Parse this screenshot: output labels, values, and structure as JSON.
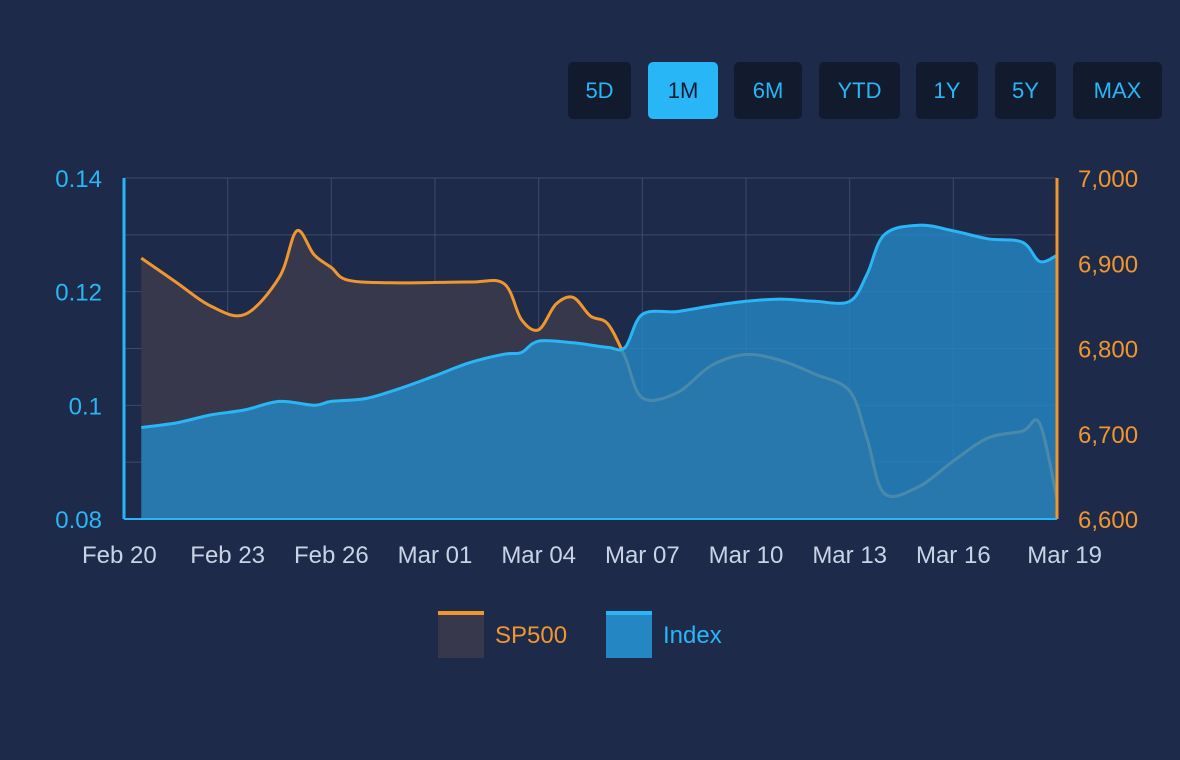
{
  "range_selector": {
    "buttons": [
      "5D",
      "1M",
      "6M",
      "YTD",
      "1Y",
      "5Y",
      "MAX"
    ],
    "active": "1M"
  },
  "colors": {
    "background": "#1e2a4a",
    "sp500": "#f0962e",
    "index": "#29b6f6",
    "sp500_fill": "#38384c",
    "index_fill": "#2586c4",
    "grid": "#3d4a68",
    "date_label": "#c9d3e6"
  },
  "chart_data": {
    "type": "area",
    "x_dates": [
      "Feb 20",
      "Feb 23",
      "Feb 26",
      "Mar 01",
      "Mar 04",
      "Mar 07",
      "Mar 10",
      "Mar 13",
      "Mar 16",
      "Mar 19"
    ],
    "left_axis": {
      "series": "Index",
      "range": [
        0.08,
        0.14
      ],
      "ticks": [
        "0.14",
        "0.12",
        "0.1",
        "0.08"
      ],
      "tick_values": [
        0.14,
        0.12,
        0.1,
        0.08
      ]
    },
    "right_axis": {
      "series": "SP500",
      "range": [
        6600,
        7000
      ],
      "ticks": [
        "7,000",
        "6,900",
        "6,800",
        "6,700",
        "6,600"
      ],
      "tick_values": [
        7000,
        6900,
        6800,
        6700,
        6600
      ]
    },
    "x_range": [
      0,
      27
    ],
    "legend_position": "bottom-center",
    "grid": true,
    "series": [
      {
        "name": "SP500",
        "axis": "right",
        "points": [
          [
            0.5,
            6906
          ],
          [
            1.5,
            6878
          ],
          [
            2.5,
            6850
          ],
          [
            3.5,
            6840
          ],
          [
            4.5,
            6884
          ],
          [
            5.0,
            6938
          ],
          [
            5.5,
            6910
          ],
          [
            6.0,
            6895
          ],
          [
            6.5,
            6880
          ],
          [
            8.0,
            6877
          ],
          [
            10.0,
            6878
          ],
          [
            11.0,
            6876
          ],
          [
            11.5,
            6834
          ],
          [
            12.0,
            6822
          ],
          [
            12.5,
            6852
          ],
          [
            13.0,
            6860
          ],
          [
            13.5,
            6838
          ],
          [
            14.0,
            6829
          ],
          [
            14.5,
            6790
          ],
          [
            15.0,
            6742
          ],
          [
            16.0,
            6748
          ],
          [
            17.0,
            6780
          ],
          [
            18.0,
            6793
          ],
          [
            19.0,
            6786
          ],
          [
            20.0,
            6770
          ],
          [
            21.0,
            6750
          ],
          [
            21.5,
            6695
          ],
          [
            22.0,
            6630
          ],
          [
            23.0,
            6638
          ],
          [
            24.0,
            6668
          ],
          [
            25.0,
            6695
          ],
          [
            26.0,
            6703
          ],
          [
            26.5,
            6712
          ],
          [
            27.0,
            6623
          ]
        ]
      },
      {
        "name": "Index",
        "axis": "left",
        "points": [
          [
            0.5,
            0.0961
          ],
          [
            1.5,
            0.0969
          ],
          [
            2.5,
            0.0983
          ],
          [
            3.5,
            0.0992
          ],
          [
            4.5,
            0.1007
          ],
          [
            5.5,
            0.1
          ],
          [
            6.0,
            0.1007
          ],
          [
            7.0,
            0.1012
          ],
          [
            8.0,
            0.103
          ],
          [
            9.0,
            0.1052
          ],
          [
            10.0,
            0.1075
          ],
          [
            11.0,
            0.109
          ],
          [
            11.5,
            0.1093
          ],
          [
            12.0,
            0.1113
          ],
          [
            13.0,
            0.111
          ],
          [
            14.0,
            0.1102
          ],
          [
            14.5,
            0.1102
          ],
          [
            15.0,
            0.116
          ],
          [
            16.0,
            0.1165
          ],
          [
            17.0,
            0.1175
          ],
          [
            18.0,
            0.1183
          ],
          [
            19.0,
            0.1187
          ],
          [
            20.0,
            0.1183
          ],
          [
            21.0,
            0.1183
          ],
          [
            21.5,
            0.123
          ],
          [
            22.0,
            0.13
          ],
          [
            23.0,
            0.1317
          ],
          [
            24.0,
            0.1307
          ],
          [
            25.0,
            0.1293
          ],
          [
            26.0,
            0.1287
          ],
          [
            26.5,
            0.1253
          ],
          [
            27.0,
            0.1264
          ]
        ]
      }
    ]
  },
  "legend": [
    {
      "label": "SP500",
      "series": "SP500"
    },
    {
      "label": "Index",
      "series": "Index"
    }
  ]
}
